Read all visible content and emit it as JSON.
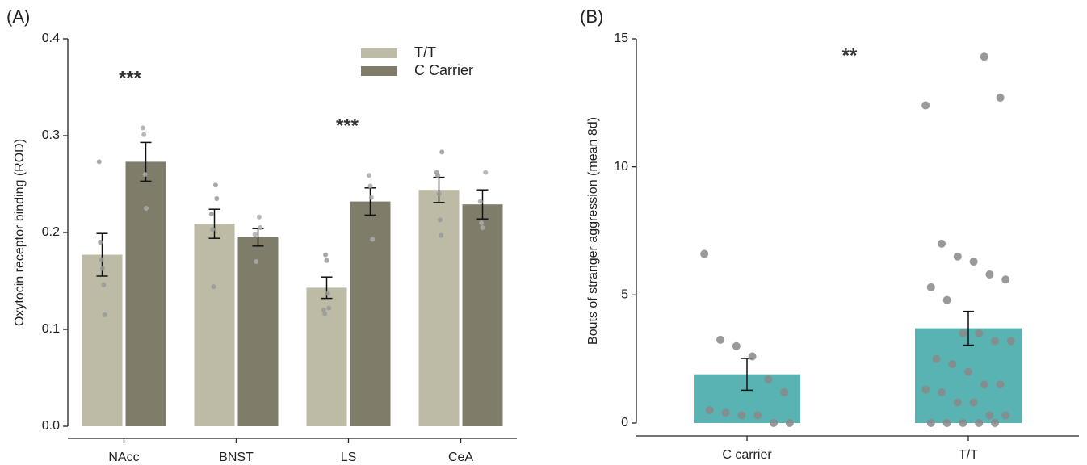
{
  "chart_data": [
    {
      "type": "bar",
      "panel_label": "(A)",
      "ylabel": "Oxytocin receptor binding (ROD)",
      "categories": [
        "NAcc",
        "BNST",
        "LS",
        "CeA"
      ],
      "series": [
        {
          "name": "T/T",
          "color": "#bdbaa6",
          "values": [
            0.177,
            0.209,
            0.143,
            0.244
          ],
          "errors": [
            0.022,
            0.015,
            0.011,
            0.013
          ],
          "points": [
            [
              0.273,
              0.19,
              0.172,
              0.163,
              0.146,
              0.115
            ],
            [
              0.249,
              0.235,
              0.219,
              0.203,
              0.144
            ],
            [
              0.177,
              0.171,
              0.137,
              0.122,
              0.12,
              0.116
            ],
            [
              0.283,
              0.262,
              0.259,
              0.24,
              0.213,
              0.197
            ]
          ]
        },
        {
          "name": "C Carrier",
          "color": "#7f7c69",
          "values": [
            0.273,
            0.195,
            0.232,
            0.229
          ],
          "errors": [
            0.02,
            0.009,
            0.014,
            0.015
          ],
          "points": [
            [
              0.308,
              0.301,
              0.26,
              0.225
            ],
            [
              0.216,
              0.205,
              0.198,
              0.17
            ],
            [
              0.259,
              0.248,
              0.236,
              0.193
            ],
            [
              0.262,
              0.232,
              0.21,
              0.205
            ]
          ]
        }
      ],
      "ylim": [
        0,
        0.4
      ],
      "yticks": [
        {
          "value": 0,
          "label": "0.0"
        },
        0.1,
        0.2,
        0.3,
        0.4
      ],
      "annotations": [
        "***",
        "***"
      ]
    },
    {
      "type": "bar",
      "panel_label": "(B)",
      "ylabel": "Bouts of stranger aggression  (mean 8d)",
      "categories": [
        "C carrier",
        "T/T"
      ],
      "series": [
        {
          "color": "#5ab3b3",
          "values": [
            1.9,
            3.7
          ],
          "errors": [
            0.62,
            0.66
          ],
          "points": [
            [
              6.6,
              3.25,
              3.0,
              2.6,
              1.7,
              1.2,
              0.5,
              0.4,
              0.3,
              0.3,
              0,
              0
            ],
            [
              14.3,
              12.7,
              12.4,
              7.0,
              6.5,
              6.3,
              5.8,
              5.6,
              5.3,
              4.8,
              3.5,
              3.5,
              3.2,
              3.2,
              2.5,
              2.3,
              2.0,
              1.5,
              1.5,
              1.3,
              1.2,
              0.8,
              0.8,
              0.3,
              0.3,
              0,
              0,
              0,
              0,
              0
            ]
          ]
        }
      ],
      "ylim": [
        0,
        15
      ],
      "yticks": [
        0,
        5,
        10,
        15
      ],
      "annotations": [
        "**"
      ]
    }
  ]
}
